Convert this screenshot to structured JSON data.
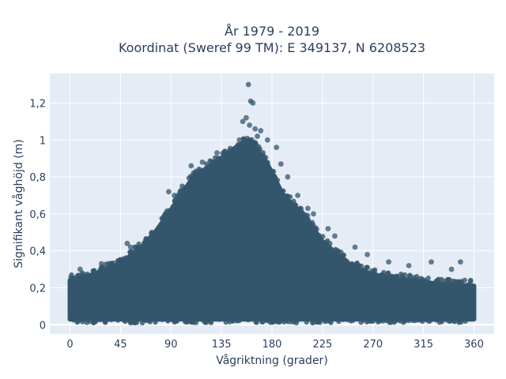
{
  "chart_data": {
    "type": "scatter",
    "title_line1": "År 1979 - 2019",
    "title_line2": "Koordinat (Sweref 99 TM): E 349137, N 6208523",
    "xlabel": "Vågriktning (grader)",
    "ylabel": "Signifikant våghöjd (m)",
    "xlim": [
      -18,
      378
    ],
    "ylim": [
      -0.05,
      1.36
    ],
    "x_ticks": [
      0,
      45,
      90,
      135,
      180,
      225,
      270,
      315,
      360
    ],
    "x_tick_labels": [
      "0",
      "45",
      "90",
      "135",
      "180",
      "225",
      "270",
      "315",
      "360"
    ],
    "y_ticks": [
      0,
      0.2,
      0.4,
      0.6,
      0.8,
      1.0,
      1.2
    ],
    "y_tick_labels": [
      "0",
      "0,2",
      "0,4",
      "0,6",
      "0,8",
      "1",
      "1,2"
    ],
    "grid": true,
    "marker_color": "#34566d",
    "plot_background": "#e5ecf6",
    "upper_envelope": [
      {
        "x": 0,
        "y": 0.24
      },
      {
        "x": 20,
        "y": 0.27
      },
      {
        "x": 45,
        "y": 0.33
      },
      {
        "x": 70,
        "y": 0.45
      },
      {
        "x": 90,
        "y": 0.62
      },
      {
        "x": 110,
        "y": 0.8
      },
      {
        "x": 135,
        "y": 0.9
      },
      {
        "x": 150,
        "y": 0.97
      },
      {
        "x": 160,
        "y": 1.0
      },
      {
        "x": 175,
        "y": 0.88
      },
      {
        "x": 190,
        "y": 0.7
      },
      {
        "x": 210,
        "y": 0.58
      },
      {
        "x": 225,
        "y": 0.45
      },
      {
        "x": 250,
        "y": 0.32
      },
      {
        "x": 270,
        "y": 0.27
      },
      {
        "x": 300,
        "y": 0.24
      },
      {
        "x": 330,
        "y": 0.22
      },
      {
        "x": 360,
        "y": 0.21
      }
    ],
    "outliers": [
      {
        "x": 159,
        "y": 1.3
      },
      {
        "x": 161,
        "y": 1.21
      },
      {
        "x": 163,
        "y": 1.2
      },
      {
        "x": 157,
        "y": 1.12
      },
      {
        "x": 160,
        "y": 1.08
      },
      {
        "x": 165,
        "y": 1.06
      },
      {
        "x": 170,
        "y": 1.05
      },
      {
        "x": 154,
        "y": 1.1
      },
      {
        "x": 151,
        "y": 1.0
      },
      {
        "x": 167,
        "y": 1.02
      },
      {
        "x": 176,
        "y": 1.0
      },
      {
        "x": 184,
        "y": 0.96
      },
      {
        "x": 142,
        "y": 0.94
      },
      {
        "x": 131,
        "y": 0.93
      },
      {
        "x": 188,
        "y": 0.87
      },
      {
        "x": 194,
        "y": 0.8
      },
      {
        "x": 203,
        "y": 0.7
      },
      {
        "x": 212,
        "y": 0.63
      },
      {
        "x": 217,
        "y": 0.6
      },
      {
        "x": 230,
        "y": 0.52
      },
      {
        "x": 236,
        "y": 0.48
      },
      {
        "x": 254,
        "y": 0.42
      },
      {
        "x": 265,
        "y": 0.38
      },
      {
        "x": 284,
        "y": 0.34
      },
      {
        "x": 302,
        "y": 0.32
      },
      {
        "x": 322,
        "y": 0.34
      },
      {
        "x": 348,
        "y": 0.34
      },
      {
        "x": 100,
        "y": 0.75
      },
      {
        "x": 93,
        "y": 0.7
      },
      {
        "x": 88,
        "y": 0.72
      },
      {
        "x": 85,
        "y": 0.6
      },
      {
        "x": 73,
        "y": 0.5
      },
      {
        "x": 51,
        "y": 0.44
      },
      {
        "x": 54,
        "y": 0.42
      },
      {
        "x": 28,
        "y": 0.33
      },
      {
        "x": 9,
        "y": 0.3
      },
      {
        "x": 35,
        "y": 0.31
      },
      {
        "x": 340,
        "y": 0.3
      },
      {
        "x": 357,
        "y": 0.24
      },
      {
        "x": 118,
        "y": 0.88
      },
      {
        "x": 108,
        "y": 0.86
      }
    ]
  }
}
